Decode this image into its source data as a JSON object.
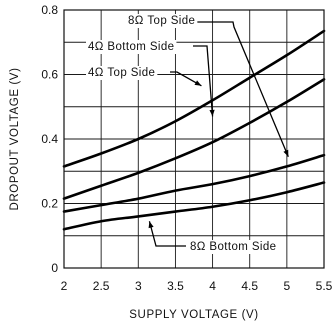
{
  "chart_data": {
    "type": "line",
    "xlabel": "SUPPLY VOLTAGE (V)",
    "ylabel": "DROPOUT VOLTAGE (V)",
    "xlim": [
      2,
      5.5
    ],
    "ylim": [
      0,
      0.8
    ],
    "xticks": [
      "2",
      "2.5",
      "3",
      "3.5",
      "4",
      "4.5",
      "5",
      "5.5"
    ],
    "yticks": [
      "0",
      "0.2",
      "0.4",
      "0.6",
      "0.8"
    ],
    "grid": true,
    "series": [
      {
        "name": "8Ω Top Side",
        "x": [
          2,
          2.5,
          3,
          3.5,
          4,
          4.5,
          5,
          5.5
        ],
        "y": [
          0.315,
          0.355,
          0.4,
          0.455,
          0.52,
          0.59,
          0.66,
          0.735
        ],
        "label_anchor": [
          5.02,
          0.345
        ]
      },
      {
        "name": "4Ω Bottom Side",
        "x": [
          2,
          2.5,
          3,
          3.5,
          4,
          4.5,
          5,
          5.5
        ],
        "y": [
          0.215,
          0.255,
          0.295,
          0.34,
          0.39,
          0.45,
          0.515,
          0.585
        ],
        "label_anchor": [
          4.0,
          0.47
        ]
      },
      {
        "name": "4Ω Top Side",
        "x": [
          2,
          2.5,
          3,
          3.5,
          4,
          4.5,
          5,
          5.5
        ],
        "y": [
          0.175,
          0.195,
          0.215,
          0.24,
          0.26,
          0.285,
          0.315,
          0.35
        ],
        "label_anchor": [
          3.85,
          0.565
        ]
      },
      {
        "name": "8Ω Bottom Side",
        "x": [
          2,
          2.5,
          3,
          3.5,
          4,
          4.5,
          5,
          5.5
        ],
        "y": [
          0.12,
          0.145,
          0.16,
          0.175,
          0.19,
          0.21,
          0.235,
          0.265
        ],
        "label_anchor": [
          3.15,
          0.145
        ]
      }
    ]
  }
}
